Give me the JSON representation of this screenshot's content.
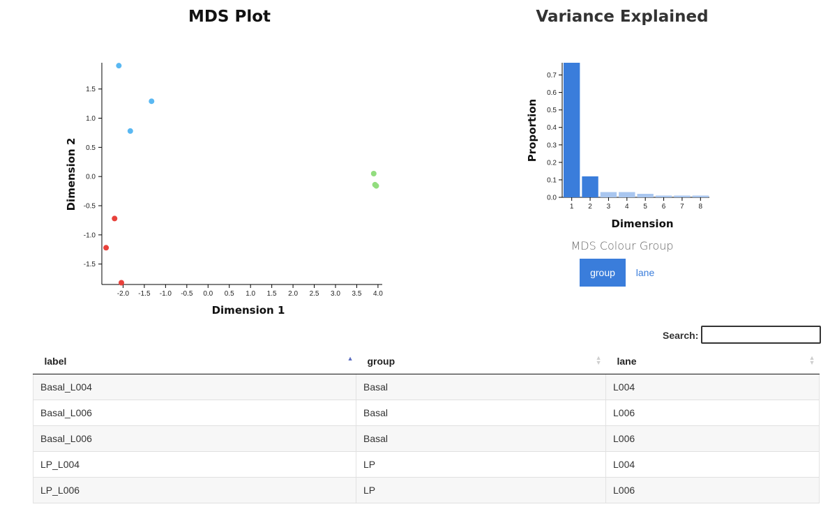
{
  "chart_data": [
    {
      "type": "scatter",
      "title": "MDS Plot",
      "xlabel": "Dimension 1",
      "ylabel": "Dimension 2",
      "xlim": [
        -2.5,
        4.1
      ],
      "ylim": [
        -1.85,
        1.95
      ],
      "xticks": [
        "-2.0",
        "-1.5",
        "-1.0",
        "-0.5",
        "0.0",
        "0.5",
        "1.0",
        "1.5",
        "2.0",
        "2.5",
        "3.0",
        "3.5",
        "4.0"
      ],
      "yticks": [
        "1.5",
        "1.0",
        "0.5",
        "0.0",
        "-0.5",
        "-1.0",
        "-1.5"
      ],
      "grid": false,
      "series": [
        {
          "color": "#e8413b",
          "points": [
            [
              -2.2,
              -0.72
            ],
            [
              -2.4,
              -1.22
            ],
            [
              -2.04,
              -1.82
            ]
          ]
        },
        {
          "color": "#5ab8f2",
          "points": [
            [
              -2.1,
              1.9
            ],
            [
              -1.33,
              1.29
            ],
            [
              -1.83,
              0.78
            ]
          ]
        },
        {
          "color": "#92dd7e",
          "points": [
            [
              3.9,
              0.05
            ],
            [
              3.93,
              -0.14
            ],
            [
              3.96,
              -0.16
            ]
          ]
        }
      ]
    },
    {
      "type": "bar",
      "title": "Variance Explained",
      "xlabel": "Dimension",
      "ylabel": "Proportion",
      "categories": [
        "1",
        "2",
        "3",
        "4",
        "5",
        "6",
        "7",
        "8"
      ],
      "values": [
        0.77,
        0.12,
        0.03,
        0.03,
        0.02,
        0.01,
        0.01,
        0.01
      ],
      "highlighted": [
        true,
        true,
        false,
        false,
        false,
        false,
        false,
        false
      ],
      "colors": {
        "highlight": "#3a7ddb",
        "normal": "#a9c6ef"
      },
      "ylim": [
        0,
        0.77
      ],
      "yticks": [
        "0.0",
        "0.1",
        "0.2",
        "0.3",
        "0.4",
        "0.5",
        "0.6",
        "0.7"
      ],
      "grid": false
    }
  ],
  "colour_group": {
    "label": "MDS Colour Group",
    "options": [
      "group",
      "lane"
    ],
    "selected": "group"
  },
  "search": {
    "label": "Search:",
    "value": ""
  },
  "table": {
    "columns": [
      "label",
      "group",
      "lane"
    ],
    "sorted_column": "label",
    "rows": [
      [
        "Basal_L004",
        "Basal",
        "L004"
      ],
      [
        "Basal_L006",
        "Basal",
        "L006"
      ],
      [
        "Basal_L006",
        "Basal",
        "L006"
      ],
      [
        "LP_L004",
        "LP",
        "L004"
      ],
      [
        "LP_L006",
        "LP",
        "L006"
      ]
    ]
  }
}
